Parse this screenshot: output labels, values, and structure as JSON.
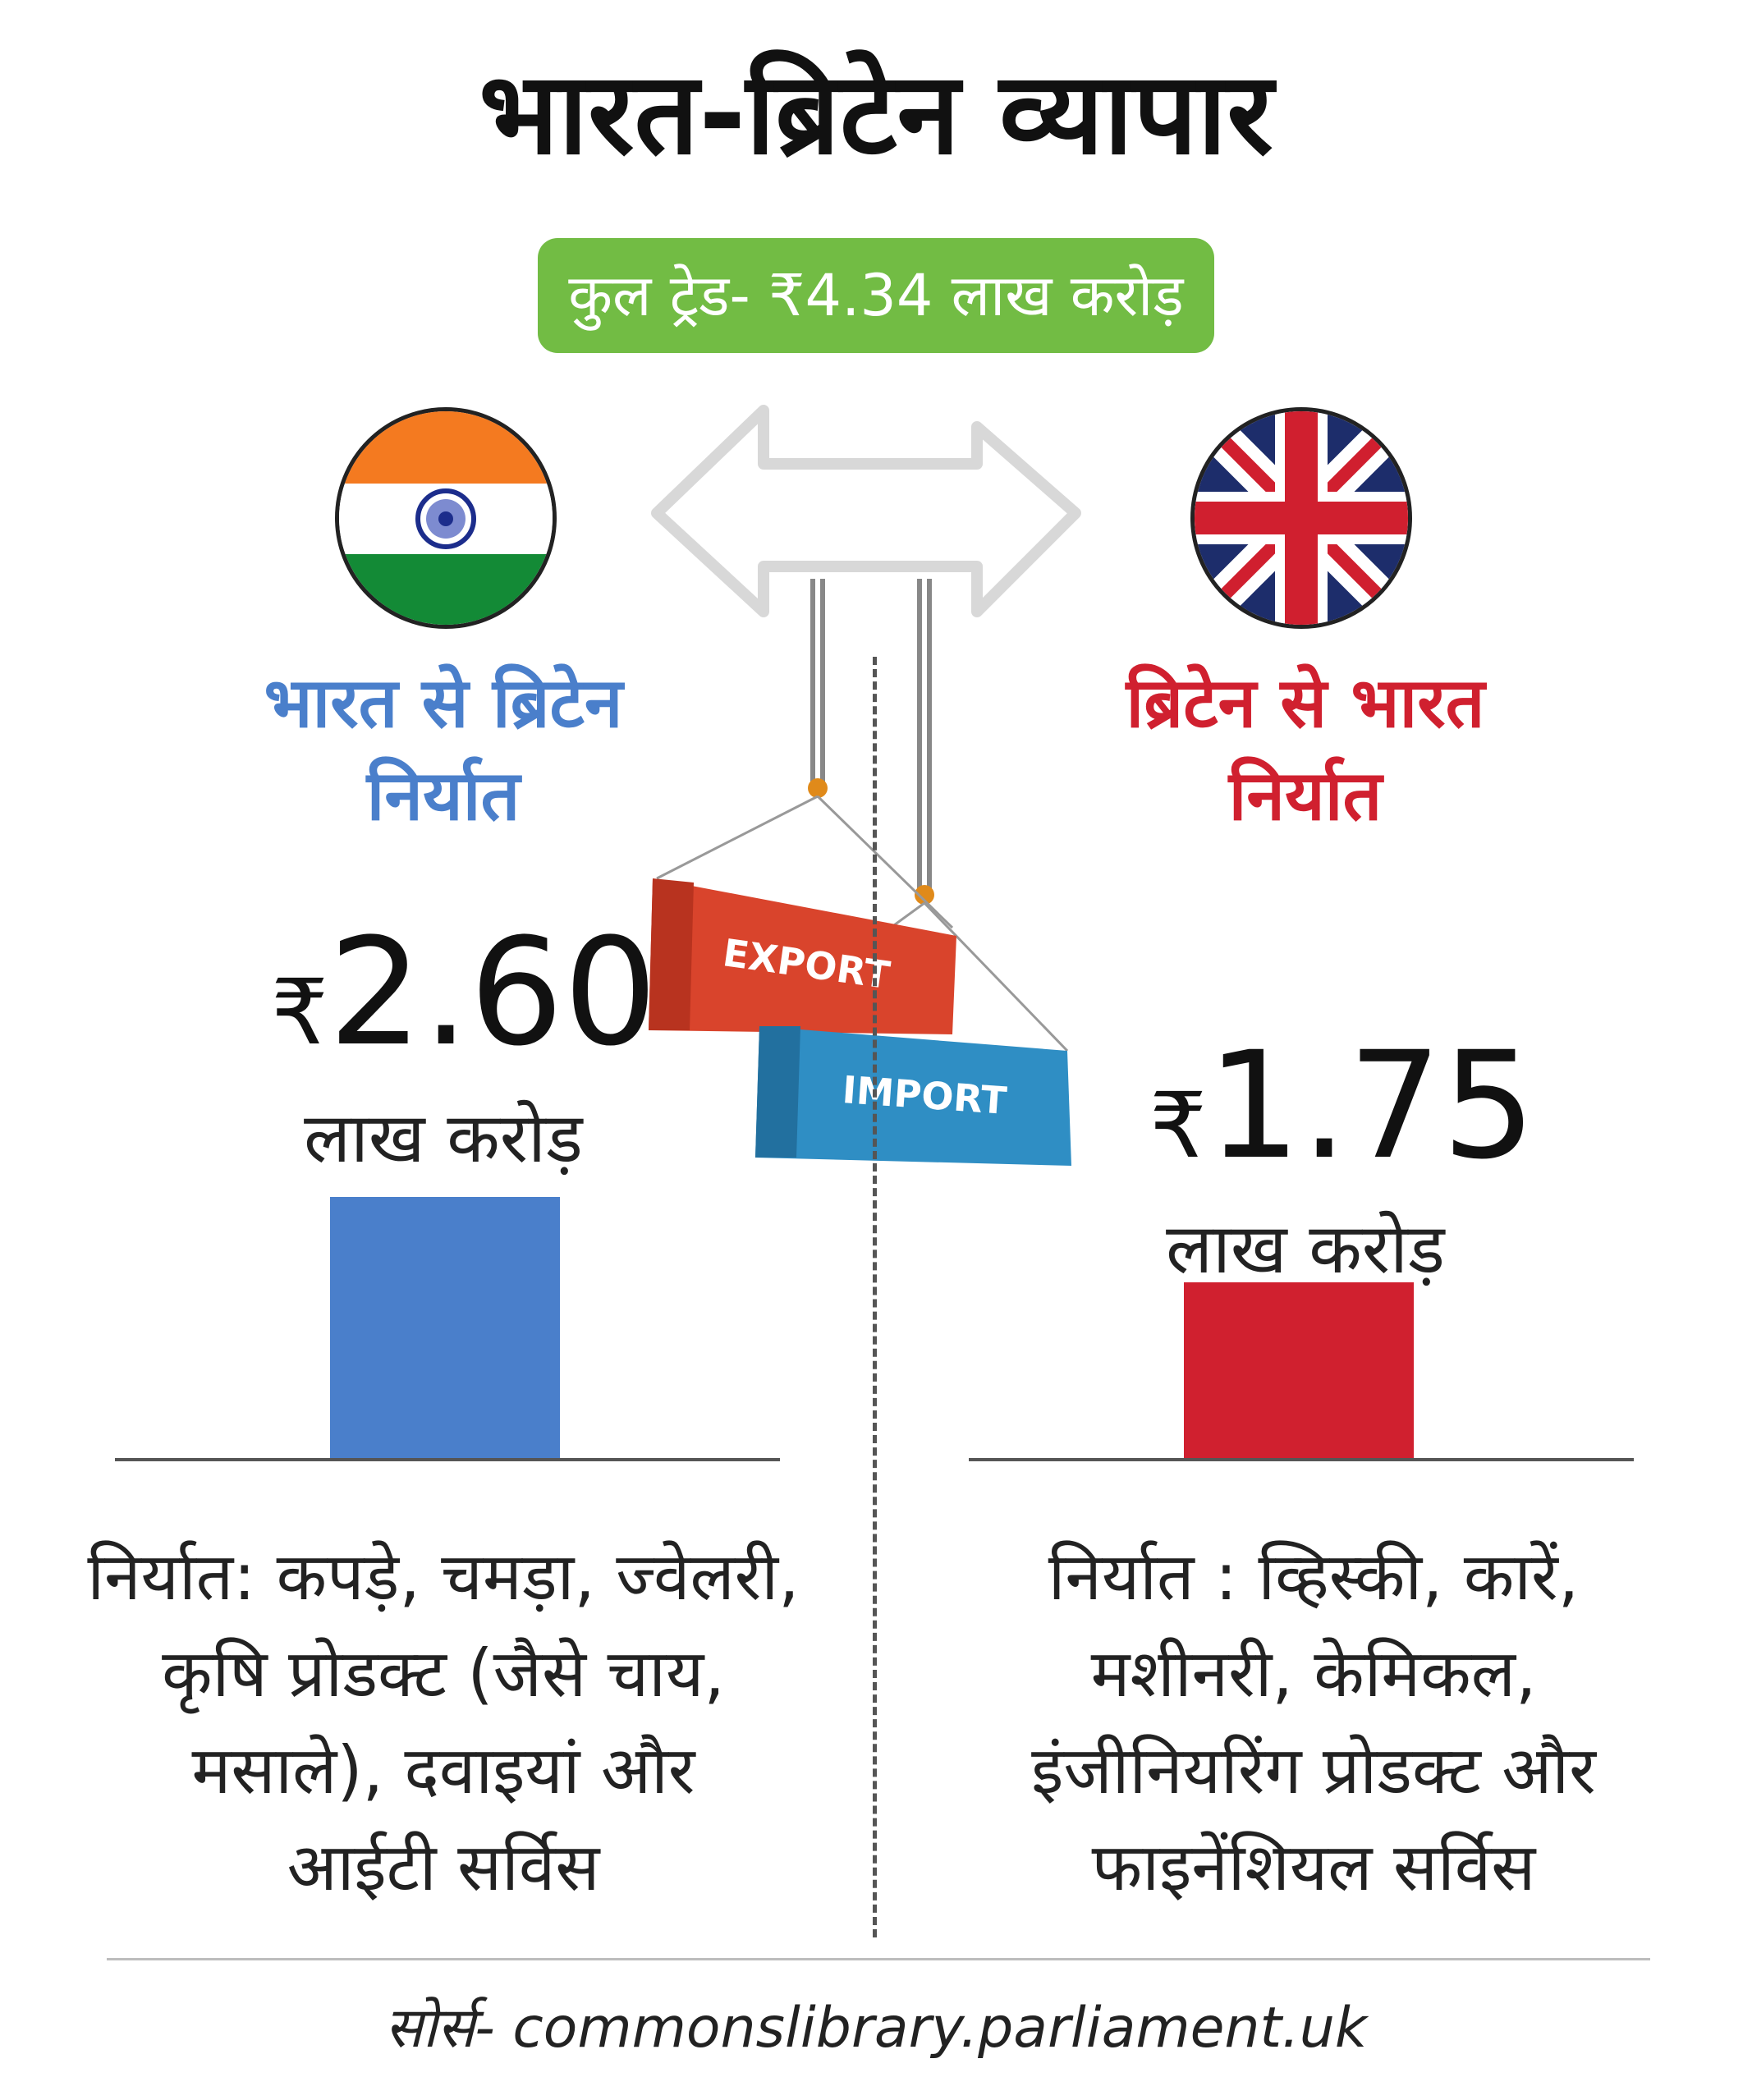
{
  "title": "भारत-ब्रिटेन व्यापार",
  "total_trade": "कुल ट्रेड- ₹4.34 लाख करोड़",
  "india": {
    "heading_line1": "भारत से ब्रिटेन",
    "heading_line2": "निर्यात",
    "currency": "₹",
    "value": "2.60",
    "unit": "लाख करोड़",
    "desc_lines": [
      "निर्यात: कपड़े, चमड़ा, ज्वेलरी,",
      "कृषि प्रोडक्ट (जैसे चाय,",
      "मसाले), दवाइयां और",
      "आईटी सर्विस"
    ],
    "color": "#4a7fcb"
  },
  "uk": {
    "heading_line1": "ब्रिटेन से भारत",
    "heading_line2": "निर्यात",
    "currency": "₹",
    "value": "1.75",
    "unit": "लाख करोड़",
    "desc_lines": [
      "निर्यात : व्हिस्की, कारें,",
      "मशीनरी, केमिकल,",
      "इंजीनियरिंग प्रोडक्ट और",
      "फाइनेंशियल सर्विस"
    ],
    "color": "#d0202f"
  },
  "containers": {
    "export_label": "EXPORT",
    "import_label": "IMPORT"
  },
  "source": "सोर्स- commonslibrary.parliament.uk",
  "icons": [
    "india-flag-icon",
    "uk-flag-icon",
    "double-arrow-icon",
    "crane-containers-icon"
  ],
  "chart_data": {
    "type": "bar",
    "categories": [
      "भारत से ब्रिटेन निर्यात",
      "ब्रिटेन से भारत निर्यात"
    ],
    "values": [
      2.6,
      1.75
    ],
    "colors": [
      "#4a7fcb",
      "#d0202f"
    ],
    "title": "भारत-ब्रिटेन व्यापार",
    "ylabel": "लाख करोड़",
    "ylim": [
      0,
      2.6
    ]
  }
}
